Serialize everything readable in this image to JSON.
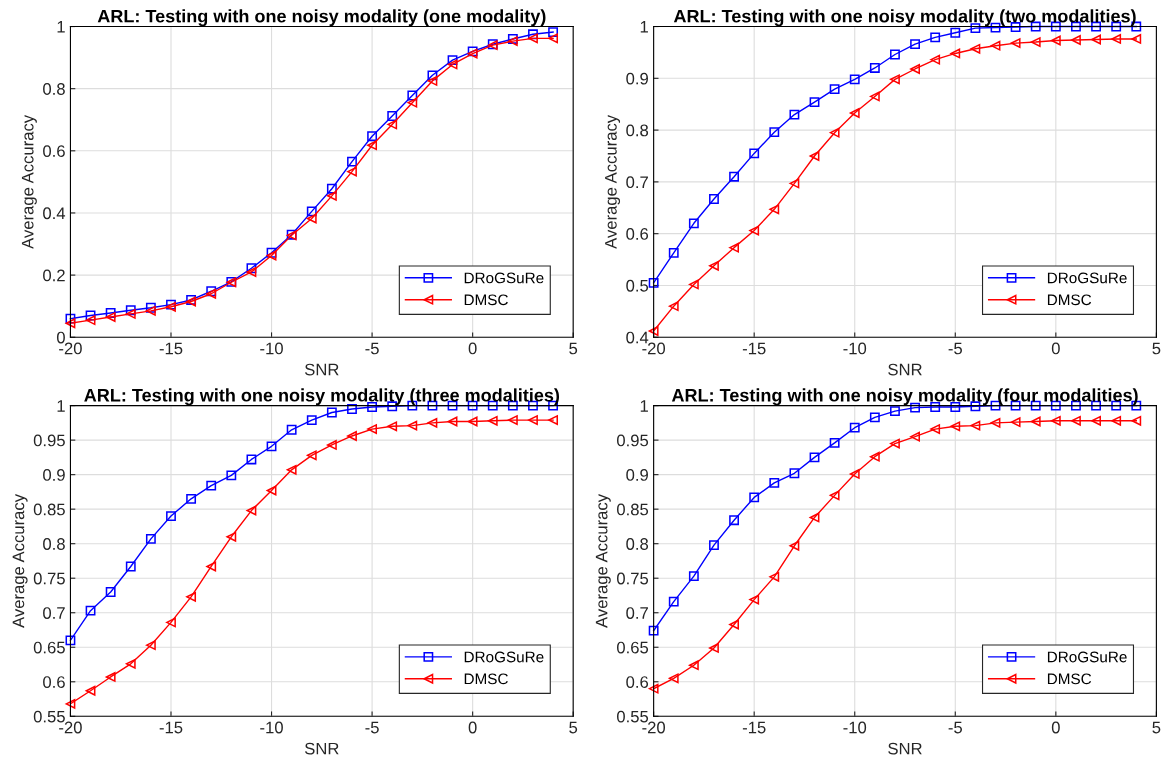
{
  "chart_data": [
    {
      "type": "line",
      "title": "ARL: Testing with one noisy modality (one modality)",
      "xlabel": "SNR",
      "ylabel": "Average Accuracy",
      "x": [
        -20,
        -19,
        -18,
        -17,
        -16,
        -15,
        -14,
        -13,
        -12,
        -11,
        -10,
        -9,
        -8,
        -7,
        -6,
        -5,
        -4,
        -3,
        -2,
        -1,
        0,
        1,
        2,
        3,
        4
      ],
      "series": [
        {
          "name": "DRoGSuRe",
          "color": "#0000ff",
          "marker": "square",
          "values": [
            0.06,
            0.07,
            0.078,
            0.087,
            0.095,
            0.105,
            0.12,
            0.148,
            0.178,
            0.222,
            0.272,
            0.33,
            0.405,
            0.478,
            0.565,
            0.647,
            0.712,
            0.778,
            0.843,
            0.892,
            0.92,
            0.943,
            0.96,
            0.975,
            0.982
          ]
        },
        {
          "name": "DMSC",
          "color": "#ff0000",
          "marker": "triangle",
          "values": [
            0.045,
            0.055,
            0.065,
            0.075,
            0.085,
            0.098,
            0.115,
            0.14,
            0.177,
            0.21,
            0.263,
            0.328,
            0.382,
            0.455,
            0.533,
            0.618,
            0.685,
            0.755,
            0.825,
            0.878,
            0.913,
            0.94,
            0.953,
            0.962,
            0.962
          ]
        }
      ],
      "xlim": [
        -20,
        5
      ],
      "xticks": [
        -20,
        -15,
        -10,
        -5,
        0,
        5
      ],
      "ylim": [
        0,
        1
      ],
      "yticks": [
        0,
        0.2,
        0.4,
        0.6,
        0.8,
        1
      ],
      "grid": true,
      "legend": "bottom right"
    },
    {
      "type": "line",
      "title": "ARL: Testing with one noisy modality (two modalities)",
      "xlabel": "SNR",
      "ylabel": "Average Accuracy",
      "x": [
        -20,
        -19,
        -18,
        -17,
        -16,
        -15,
        -14,
        -13,
        -12,
        -11,
        -10,
        -9,
        -8,
        -7,
        -6,
        -5,
        -4,
        -3,
        -2,
        -1,
        0,
        1,
        2,
        3,
        4
      ],
      "series": [
        {
          "name": "DRoGSuRe",
          "color": "#0000ff",
          "marker": "square",
          "values": [
            0.505,
            0.563,
            0.62,
            0.667,
            0.71,
            0.755,
            0.796,
            0.83,
            0.854,
            0.879,
            0.898,
            0.92,
            0.946,
            0.966,
            0.979,
            0.988,
            0.997,
            0.998,
            0.999,
            1,
            1,
            1,
            1,
            1,
            1
          ]
        },
        {
          "name": "DMSC",
          "color": "#ff0000",
          "marker": "triangle",
          "values": [
            0.412,
            0.46,
            0.502,
            0.538,
            0.573,
            0.606,
            0.647,
            0.697,
            0.75,
            0.795,
            0.833,
            0.865,
            0.898,
            0.918,
            0.936,
            0.948,
            0.957,
            0.963,
            0.968,
            0.97,
            0.973,
            0.974,
            0.975,
            0.976,
            0.976
          ]
        }
      ],
      "xlim": [
        -20,
        5
      ],
      "xticks": [
        -20,
        -15,
        -10,
        -5,
        0,
        5
      ],
      "ylim": [
        0.4,
        1
      ],
      "yticks": [
        0.4,
        0.5,
        0.6,
        0.7,
        0.8,
        0.9,
        1
      ],
      "grid": true,
      "legend": "bottom right"
    },
    {
      "type": "line",
      "title": "ARL: Testing with one noisy modality (three modalities)",
      "xlabel": "SNR",
      "ylabel": "Average Accuracy",
      "x": [
        -20,
        -19,
        -18,
        -17,
        -16,
        -15,
        -14,
        -13,
        -12,
        -11,
        -10,
        -9,
        -8,
        -7,
        -6,
        -5,
        -4,
        -3,
        -2,
        -1,
        0,
        1,
        2,
        3,
        4
      ],
      "series": [
        {
          "name": "DRoGSuRe",
          "color": "#0000ff",
          "marker": "square",
          "values": [
            0.66,
            0.703,
            0.73,
            0.767,
            0.807,
            0.84,
            0.865,
            0.884,
            0.899,
            0.922,
            0.941,
            0.965,
            0.979,
            0.99,
            0.995,
            0.998,
            0.999,
            1,
            1,
            1,
            1,
            1,
            1,
            1,
            1
          ]
        },
        {
          "name": "DMSC",
          "color": "#ff0000",
          "marker": "triangle",
          "values": [
            0.568,
            0.587,
            0.607,
            0.626,
            0.653,
            0.686,
            0.723,
            0.767,
            0.81,
            0.848,
            0.877,
            0.907,
            0.928,
            0.943,
            0.956,
            0.966,
            0.97,
            0.971,
            0.975,
            0.977,
            0.977,
            0.978,
            0.979,
            0.979,
            0.979
          ]
        }
      ],
      "xlim": [
        -20,
        5
      ],
      "xticks": [
        -20,
        -15,
        -10,
        -5,
        0,
        5
      ],
      "ylim": [
        0.55,
        1
      ],
      "yticks": [
        0.55,
        0.6,
        0.65,
        0.7,
        0.75,
        0.8,
        0.85,
        0.9,
        0.95,
        1
      ],
      "grid": true,
      "legend": "bottom right"
    },
    {
      "type": "line",
      "title": "ARL: Testing with one noisy modality (four modalities)",
      "xlabel": "SNR",
      "ylabel": "Average Accuracy",
      "x": [
        -20,
        -19,
        -18,
        -17,
        -16,
        -15,
        -14,
        -13,
        -12,
        -11,
        -10,
        -9,
        -8,
        -7,
        -6,
        -5,
        -4,
        -3,
        -2,
        -1,
        0,
        1,
        2,
        3,
        4
      ],
      "series": [
        {
          "name": "DRoGSuRe",
          "color": "#0000ff",
          "marker": "square",
          "values": [
            0.674,
            0.716,
            0.753,
            0.798,
            0.834,
            0.867,
            0.888,
            0.902,
            0.925,
            0.946,
            0.968,
            0.983,
            0.992,
            0.997,
            0.998,
            0.998,
            0.999,
            1,
            1,
            1,
            1,
            1,
            1,
            1,
            1
          ]
        },
        {
          "name": "DMSC",
          "color": "#ff0000",
          "marker": "triangle",
          "values": [
            0.59,
            0.605,
            0.624,
            0.649,
            0.683,
            0.719,
            0.752,
            0.797,
            0.838,
            0.87,
            0.901,
            0.926,
            0.945,
            0.955,
            0.966,
            0.97,
            0.971,
            0.975,
            0.976,
            0.977,
            0.978,
            0.978,
            0.978,
            0.978,
            0.978
          ]
        }
      ],
      "xlim": [
        -20,
        5
      ],
      "xticks": [
        -20,
        -15,
        -10,
        -5,
        0,
        5
      ],
      "ylim": [
        0.55,
        1
      ],
      "yticks": [
        0.55,
        0.6,
        0.65,
        0.7,
        0.75,
        0.8,
        0.85,
        0.9,
        0.95,
        1
      ],
      "grid": true,
      "legend": "bottom right"
    }
  ]
}
